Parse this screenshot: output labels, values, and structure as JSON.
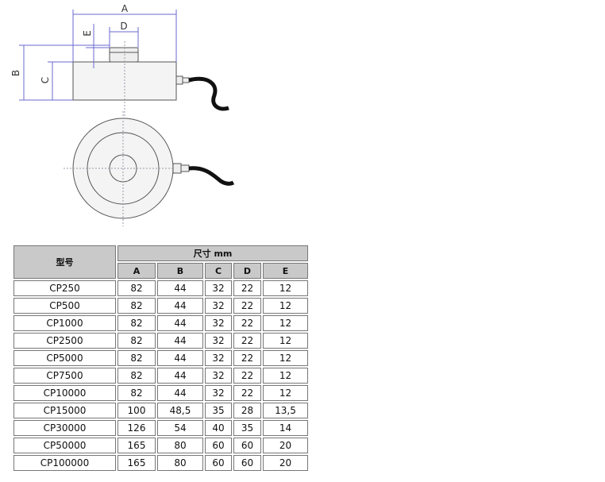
{
  "drawing": {
    "labels": {
      "a": "A",
      "b": "B",
      "c": "C",
      "d": "D",
      "e": "E"
    }
  },
  "table": {
    "model_header": "型号",
    "size_header": "尺寸 mm",
    "columns": [
      "A",
      "B",
      "C",
      "D",
      "E"
    ],
    "rows": [
      [
        "CP250",
        "82",
        "44",
        "32",
        "22",
        "12"
      ],
      [
        "CP500",
        "82",
        "44",
        "32",
        "22",
        "12"
      ],
      [
        "CP1000",
        "82",
        "44",
        "32",
        "22",
        "12"
      ],
      [
        "CP2500",
        "82",
        "44",
        "32",
        "22",
        "12"
      ],
      [
        "CP5000",
        "82",
        "44",
        "32",
        "22",
        "12"
      ],
      [
        "CP7500",
        "82",
        "44",
        "32",
        "22",
        "12"
      ],
      [
        "CP10000",
        "82",
        "44",
        "32",
        "22",
        "12"
      ],
      [
        "CP15000",
        "100",
        "48,5",
        "35",
        "28",
        "13,5"
      ],
      [
        "CP30000",
        "126",
        "54",
        "40",
        "35",
        "14"
      ],
      [
        "CP50000",
        "165",
        "80",
        "60",
        "60",
        "20"
      ],
      [
        "CP100000",
        "165",
        "80",
        "60",
        "60",
        "20"
      ]
    ]
  }
}
